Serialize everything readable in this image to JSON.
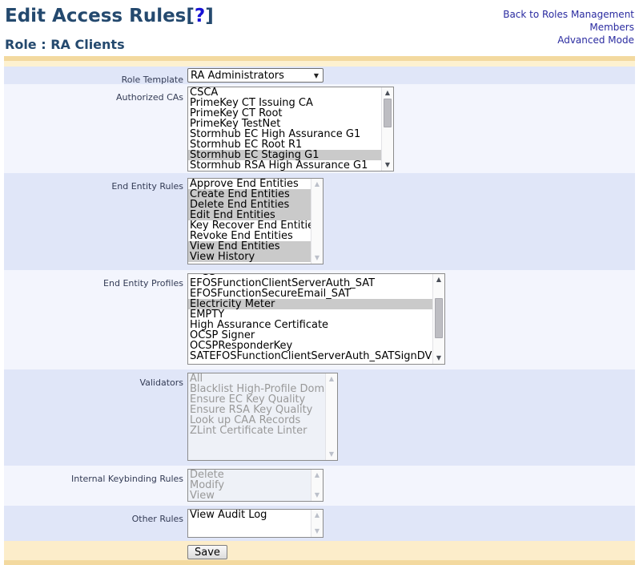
{
  "page": {
    "title": "Edit Access Rules",
    "help_bracket_open": "[",
    "help_mark": "?",
    "help_bracket_close": "]",
    "subtitle": "Role : RA Clients",
    "nav_links": [
      {
        "label": "Back to Roles Management"
      },
      {
        "label": "Members"
      },
      {
        "label": "Advanced Mode"
      }
    ]
  },
  "colors": {
    "title_blue": "#24496e",
    "link_blue": "#2a2ba0",
    "help_blue": "#1812d6",
    "row_blue": "#e0e6f8",
    "row_pale": "#f3f5fd",
    "bar_gold": "#f3d99f",
    "bar_cream": "#fdf1d0",
    "save_row_cream": "#fcedca",
    "selected_option_gray": "#cacaca",
    "disabled_text_gray": "#999999"
  },
  "form": {
    "role_template": {
      "label": "Role Template",
      "value": "RA Administrators"
    },
    "authorized_cas": {
      "label": "Authorized CAs",
      "options": [
        {
          "label": "CSCA",
          "state": "normal"
        },
        {
          "label": "PrimeKey CT Issuing CA",
          "state": "normal"
        },
        {
          "label": "PrimeKey CT Root",
          "state": "normal"
        },
        {
          "label": "PrimeKey TestNet",
          "state": "normal"
        },
        {
          "label": "Stormhub EC High Assurance G1",
          "state": "normal"
        },
        {
          "label": "Stormhub EC Root R1",
          "state": "normal"
        },
        {
          "label": "Stormhub EC Staging G1",
          "state": "selected"
        },
        {
          "label": "Stormhub RSA High Assurance G1",
          "state": "normal"
        }
      ]
    },
    "end_entity_rules": {
      "label": "End Entity Rules",
      "options": [
        {
          "label": "Approve End Entities",
          "state": "normal"
        },
        {
          "label": "Create End Entities",
          "state": "selected"
        },
        {
          "label": "Delete End Entities",
          "state": "selected"
        },
        {
          "label": "Edit End Entities",
          "state": "selected"
        },
        {
          "label": "Key Recover End Entities",
          "state": "normal"
        },
        {
          "label": "Revoke End Entities",
          "state": "normal"
        },
        {
          "label": "View End Entities",
          "state": "selected"
        },
        {
          "label": "View History",
          "state": "selected"
        }
      ]
    },
    "end_entity_profiles": {
      "label": "End Entity Profiles",
      "top_clipped_text": "SS",
      "options": [
        {
          "label": "EFOSFunctionClientServerAuth_SAT",
          "state": "normal"
        },
        {
          "label": "EFOSFunctionSecureEmail_SAT",
          "state": "normal"
        },
        {
          "label": "Electricity Meter",
          "state": "selected"
        },
        {
          "label": "EMPTY",
          "state": "normal"
        },
        {
          "label": "High Assurance Certificate",
          "state": "normal"
        },
        {
          "label": "OCSP Signer",
          "state": "normal"
        },
        {
          "label": "OCSPResponderKey",
          "state": "normal"
        },
        {
          "label": "SATEFOSFunctionClientServerAuth_SATSignDVServer",
          "state": "normal"
        }
      ]
    },
    "validators": {
      "label": "Validators",
      "options": [
        {
          "label": "All",
          "state": "disabled"
        },
        {
          "label": "Blacklist High-Profile Domains",
          "state": "disabled"
        },
        {
          "label": "Ensure EC Key Quality",
          "state": "disabled"
        },
        {
          "label": "Ensure RSA Key Quality",
          "state": "disabled"
        },
        {
          "label": "Look up CAA Records",
          "state": "disabled"
        },
        {
          "label": "ZLint Certificate Linter",
          "state": "disabled"
        }
      ]
    },
    "internal_keybinding_rules": {
      "label": "Internal Keybinding Rules",
      "options": [
        {
          "label": "Delete",
          "state": "disabled"
        },
        {
          "label": "Modify",
          "state": "disabled"
        },
        {
          "label": "View",
          "state": "disabled"
        }
      ]
    },
    "other_rules": {
      "label": "Other Rules",
      "options": [
        {
          "label": "View Audit Log",
          "state": "normal"
        }
      ]
    },
    "save_label": "Save"
  }
}
